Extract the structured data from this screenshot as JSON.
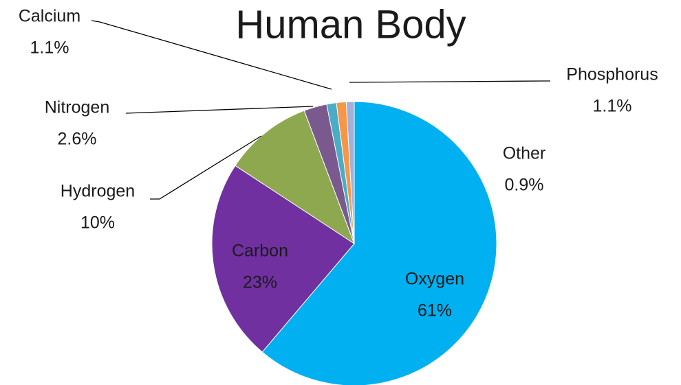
{
  "chart_data": {
    "type": "pie",
    "title": "Human Body",
    "categories": [
      "Oxygen",
      "Carbon",
      "Hydrogen",
      "Nitrogen",
      "Calcium",
      "Phosphorus",
      "Other"
    ],
    "values": [
      61,
      23,
      10,
      2.6,
      1.1,
      1.1,
      0.9
    ],
    "value_labels": [
      "61%",
      "23%",
      "10%",
      "2.6%",
      "1.1%",
      "1.1%",
      "0.9%"
    ],
    "colors": [
      "#00b0f0",
      "#7030a0",
      "#8ea850",
      "#7a5a8e",
      "#4bacc6",
      "#f79646",
      "#a5b0d8"
    ]
  }
}
